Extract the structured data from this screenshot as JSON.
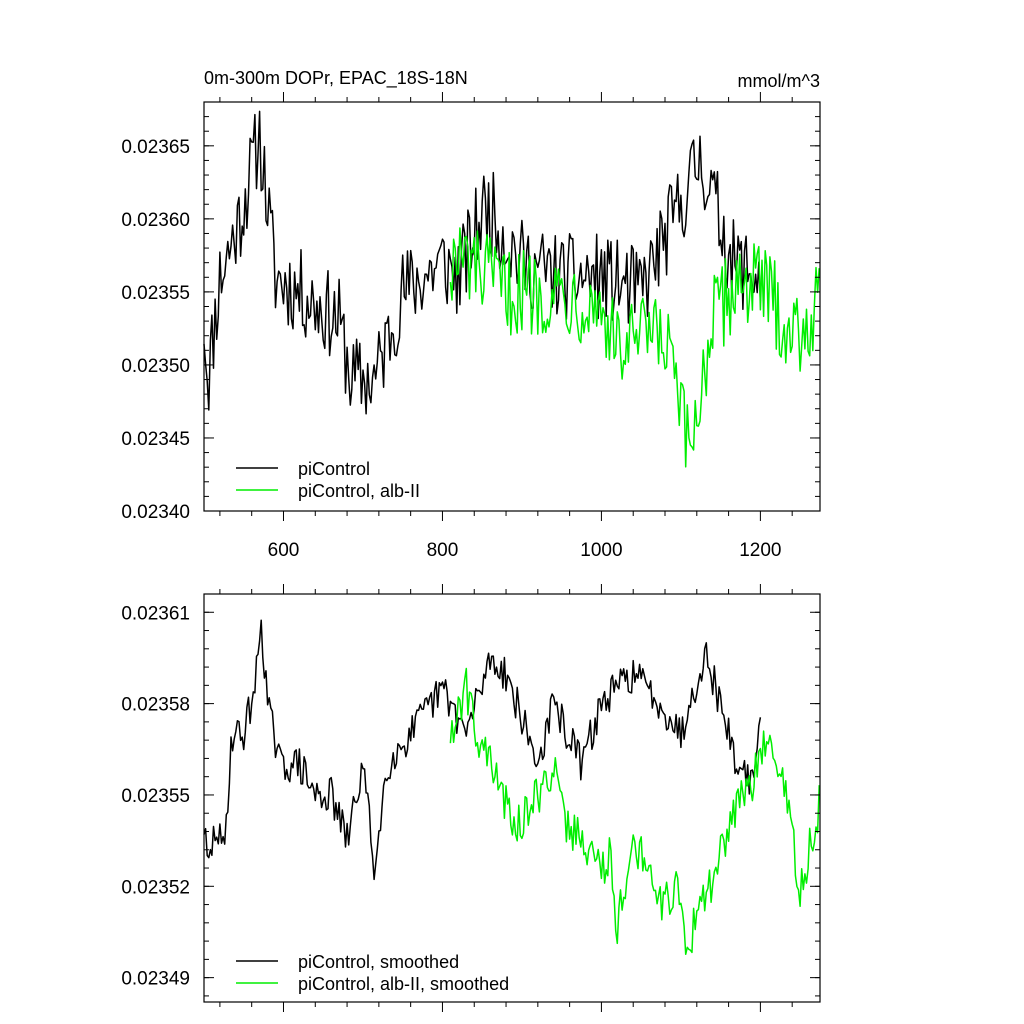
{
  "chart_data": [
    {
      "type": "line",
      "title": "0m-300m DOPr, EPAC_18S-18N",
      "units": "mmol/m^3",
      "xlim": [
        500,
        1275
      ],
      "ylim": [
        0.0234,
        0.02368
      ],
      "xticks": [
        600,
        800,
        1000,
        1200
      ],
      "xtick_labels": [
        "600",
        "800",
        "1000",
        "1200"
      ],
      "yticks": [
        0.0234,
        0.02345,
        0.0235,
        0.02355,
        0.0236,
        0.02365
      ],
      "ytick_labels": [
        "0.02340",
        "0.02345",
        "0.02350",
        "0.02355",
        "0.02360",
        "0.02365"
      ],
      "grid": false,
      "legend_position": "bottom-left",
      "series": [
        {
          "name": "piControl",
          "color": "#000000",
          "x_range": [
            500,
            1200
          ],
          "x_step": 2,
          "mean": 0.023555,
          "min": 0.02349,
          "max": 0.023657,
          "keypoints": [
            [
              500,
              0.02353
            ],
            [
              505,
              0.02349
            ],
            [
              520,
              0.02356
            ],
            [
              545,
              0.0236
            ],
            [
              570,
              0.023657
            ],
            [
              590,
              0.02356
            ],
            [
              620,
              0.02355
            ],
            [
              670,
              0.02353
            ],
            [
              685,
              0.02349
            ],
            [
              715,
              0.02349
            ],
            [
              750,
              0.02355
            ],
            [
              800,
              0.02357
            ],
            [
              820,
              0.02356
            ],
            [
              855,
              0.02361
            ],
            [
              900,
              0.02357
            ],
            [
              950,
              0.02356
            ],
            [
              1000,
              0.02356
            ],
            [
              1050,
              0.02355
            ],
            [
              1125,
              0.023642
            ],
            [
              1165,
              0.02357
            ],
            [
              1200,
              0.02356
            ]
          ],
          "noise_amplitude": 3e-05
        },
        {
          "name": "piControl, alb-II",
          "color": "#00ee00",
          "x_range": [
            810,
            1275
          ],
          "x_step": 2,
          "mean": 0.02354,
          "min": 0.023437,
          "max": 0.02363,
          "keypoints": [
            [
              810,
              0.02357
            ],
            [
              830,
              0.02357
            ],
            [
              880,
              0.02355
            ],
            [
              950,
              0.02355
            ],
            [
              1000,
              0.02354
            ],
            [
              1020,
              0.02351
            ],
            [
              1060,
              0.02352
            ],
            [
              1085,
              0.02351
            ],
            [
              1110,
              0.023437
            ],
            [
              1140,
              0.02353
            ],
            [
              1175,
              0.02356
            ],
            [
              1210,
              0.02355
            ],
            [
              1240,
              0.02352
            ],
            [
              1275,
              0.02354
            ]
          ],
          "noise_amplitude": 3e-05
        }
      ],
      "legend": [
        "piControl",
        "piControl, alb-II"
      ]
    },
    {
      "type": "line",
      "title": "",
      "xlim": [
        500,
        1275
      ],
      "ylim": [
        0.023482,
        0.023616
      ],
      "xticks": [
        600,
        800,
        1000,
        1200
      ],
      "xtick_labels": [
        "",
        "",
        "",
        ""
      ],
      "yticks": [
        0.02349,
        0.02352,
        0.02355,
        0.02358,
        0.02361
      ],
      "ytick_labels": [
        "0.02349",
        "0.02352",
        "0.02355",
        "0.02358",
        "0.02361"
      ],
      "grid": false,
      "legend_position": "bottom-left",
      "series": [
        {
          "name": "piControl, smoothed",
          "color": "#000000",
          "x_range": [
            500,
            1200
          ],
          "x_step": 2,
          "keypoints": [
            [
              500,
              0.02354
            ],
            [
              505,
              0.023525
            ],
            [
              515,
              0.02354
            ],
            [
              525,
              0.02353
            ],
            [
              535,
              0.02357
            ],
            [
              550,
              0.02357
            ],
            [
              565,
              0.023587
            ],
            [
              572,
              0.023608
            ],
            [
              580,
              0.02358
            ],
            [
              595,
              0.02356
            ],
            [
              620,
              0.02356
            ],
            [
              640,
              0.02355
            ],
            [
              660,
              0.02355
            ],
            [
              680,
              0.023535
            ],
            [
              700,
              0.02356
            ],
            [
              715,
              0.023525
            ],
            [
              730,
              0.02356
            ],
            [
              760,
              0.02357
            ],
            [
              800,
              0.023585
            ],
            [
              830,
              0.02357
            ],
            [
              860,
              0.023595
            ],
            [
              880,
              0.02359
            ],
            [
              920,
              0.02356
            ],
            [
              940,
              0.02358
            ],
            [
              975,
              0.02356
            ],
            [
              1000,
              0.02358
            ],
            [
              1040,
              0.02359
            ],
            [
              1075,
              0.02358
            ],
            [
              1100,
              0.02357
            ],
            [
              1130,
              0.023597
            ],
            [
              1150,
              0.02358
            ],
            [
              1170,
              0.02356
            ],
            [
              1190,
              0.023555
            ],
            [
              1200,
              0.02357
            ]
          ],
          "noise_amplitude": 6e-06
        },
        {
          "name": "piControl, alb-II, smoothed",
          "color": "#00ee00",
          "x_range": [
            810,
            1275
          ],
          "x_step": 2,
          "keypoints": [
            [
              810,
              0.02357
            ],
            [
              830,
              0.023585
            ],
            [
              845,
              0.02357
            ],
            [
              860,
              0.02356
            ],
            [
              875,
              0.02355
            ],
            [
              895,
              0.02354
            ],
            [
              920,
              0.02355
            ],
            [
              940,
              0.02356
            ],
            [
              955,
              0.02354
            ],
            [
              980,
              0.023535
            ],
            [
              1000,
              0.023525
            ],
            [
              1010,
              0.02353
            ],
            [
              1020,
              0.023508
            ],
            [
              1035,
              0.02353
            ],
            [
              1060,
              0.02353
            ],
            [
              1075,
              0.023515
            ],
            [
              1100,
              0.02352
            ],
            [
              1108,
              0.023494
            ],
            [
              1120,
              0.023515
            ],
            [
              1140,
              0.02352
            ],
            [
              1160,
              0.02354
            ],
            [
              1180,
              0.02355
            ],
            [
              1200,
              0.02356
            ],
            [
              1210,
              0.02357
            ],
            [
              1220,
              0.02356
            ],
            [
              1235,
              0.023545
            ],
            [
              1250,
              0.023518
            ],
            [
              1260,
              0.02353
            ],
            [
              1275,
              0.023548
            ]
          ],
          "noise_amplitude": 7e-06
        }
      ],
      "legend": [
        "piControl, smoothed",
        "piControl, alb-II, smoothed"
      ]
    }
  ]
}
